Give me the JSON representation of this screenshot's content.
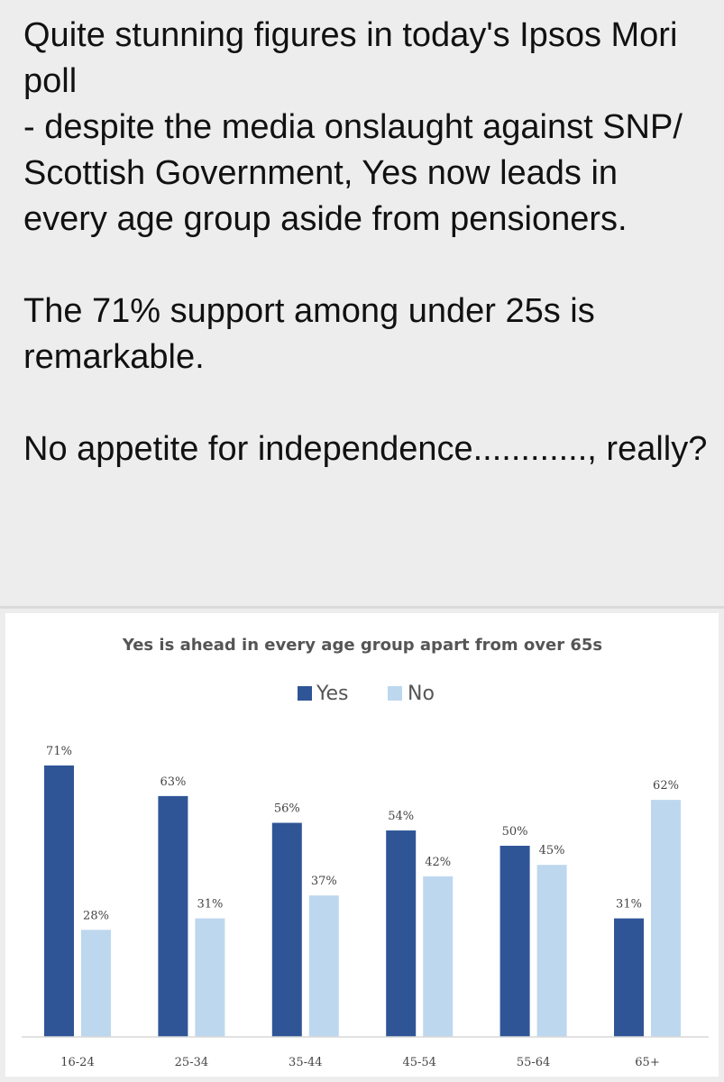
{
  "post": {
    "paragraphs": [
      "Quite stunning figures in today's Ipsos Mori poll\n - despite the media onslaught against SNP/ Scottish Government, Yes now leads in every age group aside from pensioners.",
      "The 71% support among under 25s is remarkable.",
      "No appetite for independence............, really?"
    ]
  },
  "chart_data": {
    "type": "bar",
    "title": "Yes is ahead in every age group apart from over 65s",
    "categories": [
      "16-24",
      "25-34",
      "35-44",
      "45-54",
      "55-64",
      "65+"
    ],
    "series": [
      {
        "name": "Yes",
        "values": [
          71,
          63,
          56,
          54,
          50,
          31
        ],
        "labels": [
          "71%",
          "63%",
          "56%",
          "54%",
          "50%",
          "31%"
        ]
      },
      {
        "name": "No",
        "values": [
          28,
          31,
          37,
          42,
          45,
          62
        ],
        "labels": [
          "28%",
          "31%",
          "37%",
          "42%",
          "45%",
          "62%"
        ]
      }
    ],
    "colors": {
      "Yes": "#2f5597",
      "No": "#bdd7ee"
    },
    "legend_position": "top",
    "ylim": [
      0,
      75
    ],
    "grid": false
  }
}
